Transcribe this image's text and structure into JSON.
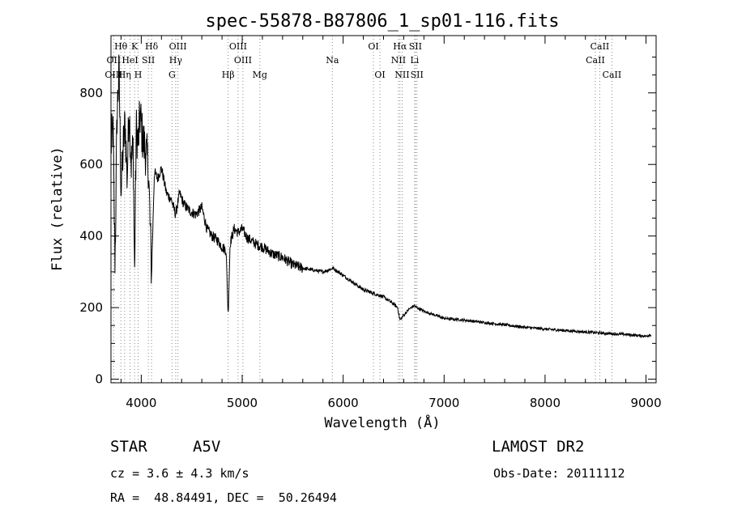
{
  "chart_data": {
    "type": "line",
    "title": "spec-55878-B87806_1_sp01-116.fits",
    "xlabel": "Wavelength (Å)",
    "ylabel": "Flux (relative)",
    "xlim": [
      3700,
      9100
    ],
    "ylim": [
      -10,
      960
    ],
    "xticks": [
      4000,
      5000,
      6000,
      7000,
      8000,
      9000
    ],
    "yticks": [
      0,
      200,
      400,
      600,
      800
    ],
    "series": [
      {
        "name": "flux",
        "x": [
          3700,
          3720,
          3740,
          3760,
          3780,
          3800,
          3820,
          3840,
          3860,
          3880,
          3900,
          3920,
          3934,
          3950,
          3970,
          3990,
          4010,
          4040,
          4070,
          4102,
          4130,
          4160,
          4200,
          4250,
          4300,
          4340,
          4380,
          4420,
          4480,
          4540,
          4600,
          4650,
          4700,
          4750,
          4800,
          4840,
          4861,
          4880,
          4920,
          4960,
          5000,
          5050,
          5100,
          5150,
          5200,
          5300,
          5400,
          5500,
          5600,
          5700,
          5800,
          5900,
          6000,
          6100,
          6200,
          6300,
          6400,
          6500,
          6540,
          6563,
          6590,
          6650,
          6700,
          6800,
          6900,
          7000,
          7200,
          7400,
          7600,
          7800,
          8000,
          8200,
          8400,
          8600,
          8800,
          9000,
          9050
        ],
        "y": [
          650,
          700,
          320,
          740,
          860,
          520,
          640,
          720,
          560,
          760,
          600,
          650,
          290,
          700,
          660,
          740,
          680,
          640,
          600,
          290,
          580,
          560,
          590,
          520,
          500,
          460,
          520,
          490,
          470,
          460,
          480,
          420,
          400,
          390,
          370,
          360,
          180,
          380,
          420,
          410,
          420,
          395,
          385,
          375,
          370,
          350,
          340,
          320,
          310,
          305,
          300,
          310,
          290,
          270,
          250,
          240,
          230,
          210,
          200,
          165,
          175,
          195,
          205,
          190,
          180,
          170,
          165,
          158,
          152,
          145,
          140,
          136,
          132,
          128,
          125,
          120,
          125
        ]
      }
    ],
    "annotations": [
      {
        "label": "Hθ",
        "x": 3798,
        "row": 1
      },
      {
        "label": "OII",
        "x": 3727,
        "row": 2
      },
      {
        "label": "OIII",
        "x": 3727,
        "row": 3
      },
      {
        "label": "Hη",
        "x": 3835,
        "row": 3
      },
      {
        "label": "HeI",
        "x": 3889,
        "row": 2
      },
      {
        "label": "K",
        "x": 3934,
        "row": 1
      },
      {
        "label": "SII",
        "x": 4070,
        "row": 2
      },
      {
        "label": "H",
        "x": 3969,
        "row": 3
      },
      {
        "label": "Hδ",
        "x": 4102,
        "row": 1
      },
      {
        "label": "OIII",
        "x": 4363,
        "row": 1
      },
      {
        "label": "Hγ",
        "x": 4341,
        "row": 2
      },
      {
        "label": "G",
        "x": 4305,
        "row": 3
      },
      {
        "label": "Hβ",
        "x": 4861,
        "row": 3
      },
      {
        "label": "OIII",
        "x": 4959,
        "row": 1
      },
      {
        "label": "OIII",
        "x": 5007,
        "row": 2
      },
      {
        "label": "Mg",
        "x": 5175,
        "row": 3
      },
      {
        "label": "Na",
        "x": 5893,
        "row": 2
      },
      {
        "label": "OI",
        "x": 6300,
        "row": 1
      },
      {
        "label": "OI",
        "x": 6364,
        "row": 3
      },
      {
        "label": "Hα",
        "x": 6563,
        "row": 1
      },
      {
        "label": "SII",
        "x": 6716,
        "row": 1
      },
      {
        "label": "NII",
        "x": 6548,
        "row": 2
      },
      {
        "label": "Li",
        "x": 6708,
        "row": 2
      },
      {
        "label": "NII",
        "x": 6584,
        "row": 3
      },
      {
        "label": "SII",
        "x": 6731,
        "row": 3
      },
      {
        "label": "CaII",
        "x": 8542,
        "row": 1
      },
      {
        "label": "CaII",
        "x": 8498,
        "row": 2
      },
      {
        "label": "CaII",
        "x": 8662,
        "row": 3
      }
    ],
    "line_markers": [
      3727,
      3798,
      3835,
      3889,
      3934,
      3969,
      4070,
      4102,
      4305,
      4341,
      4363,
      4861,
      4959,
      5007,
      5175,
      5893,
      6300,
      6364,
      6548,
      6563,
      6584,
      6708,
      6716,
      6731,
      8498,
      8542,
      8662
    ]
  },
  "info": {
    "class_label": "STAR",
    "subclass": "A5V",
    "survey": "LAMOST DR2",
    "cz": "cz = 3.6 ± 4.3 km/s",
    "obs_date": "Obs-Date: 20111112",
    "radec": "RA =  48.84491, DEC =  50.26494"
  }
}
